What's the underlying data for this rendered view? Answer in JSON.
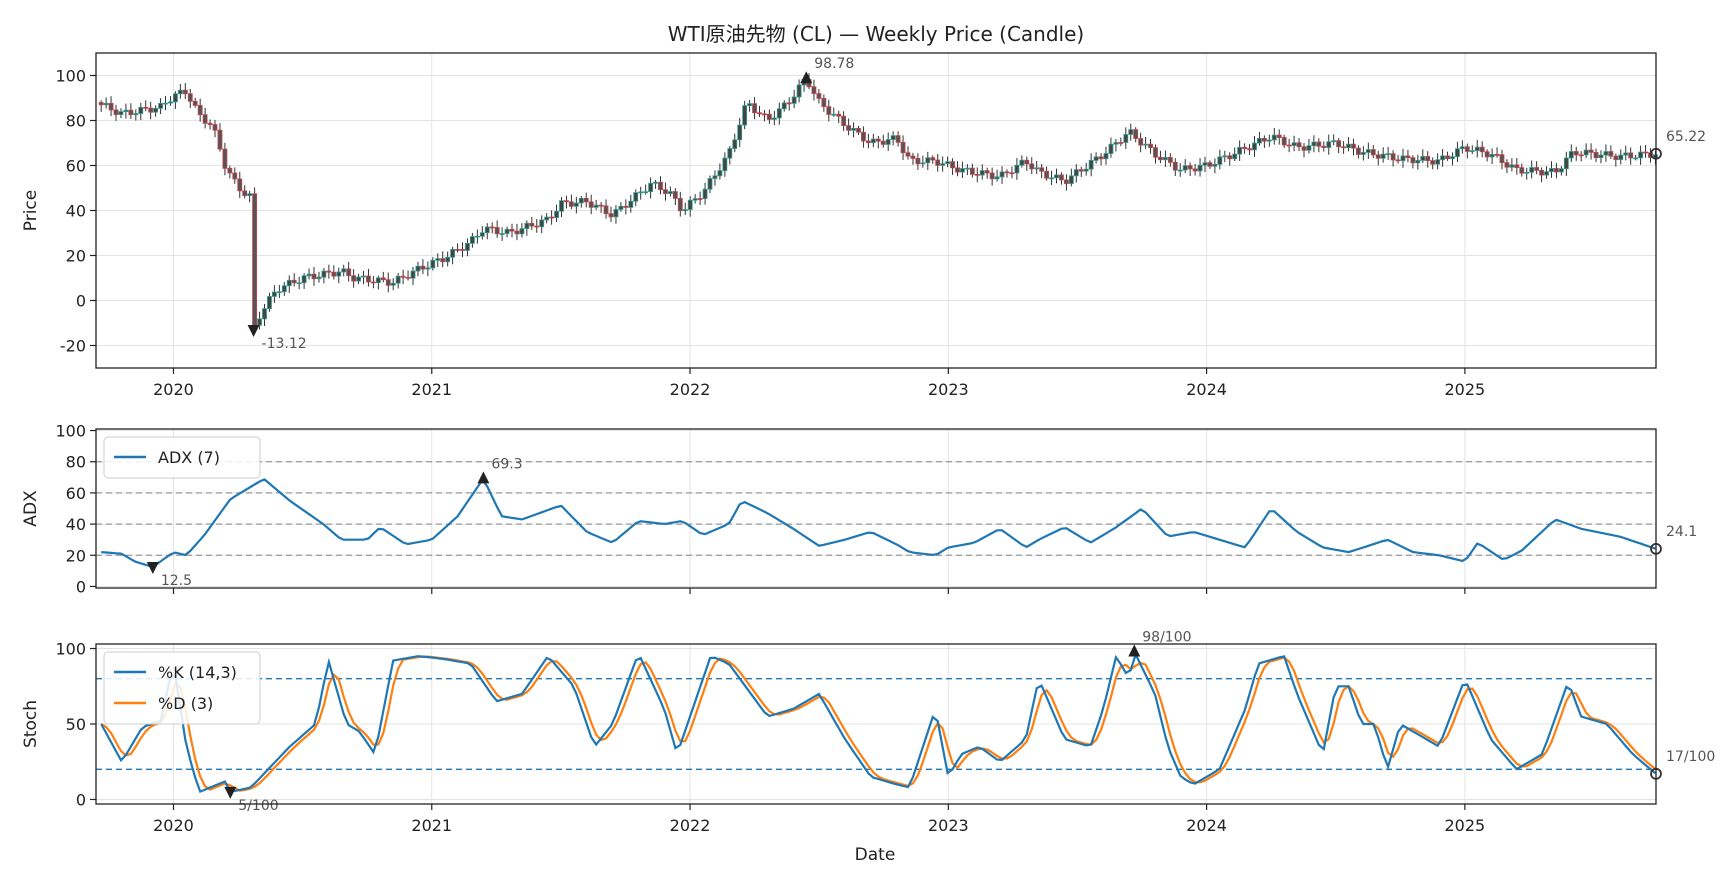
{
  "chart_data": [
    {
      "type": "candlestick",
      "title": "WTI原油先物 (CL) — Weekly Price (Candle)",
      "ylabel": "Price",
      "ylim": [
        -30,
        110
      ],
      "yticks": [
        100,
        80,
        60,
        40,
        20,
        0,
        -20
      ],
      "xlim": [
        2019.7,
        2025.74
      ],
      "xticks": [
        "2020",
        "2021",
        "2022",
        "2023",
        "2024",
        "2025"
      ],
      "colors": {
        "up": "#2e9e8f",
        "down": "#c8414b",
        "wick": "#333333"
      },
      "close_anchors": [
        [
          2019.72,
          87
        ],
        [
          2019.8,
          83
        ],
        [
          2019.95,
          86
        ],
        [
          2020.0,
          91
        ],
        [
          2020.05,
          93
        ],
        [
          2020.1,
          82
        ],
        [
          2020.15,
          78
        ],
        [
          2020.2,
          60
        ],
        [
          2020.25,
          50
        ],
        [
          2020.3,
          46
        ],
        [
          2020.31,
          -13.12
        ],
        [
          2020.34,
          -5
        ],
        [
          2020.4,
          5
        ],
        [
          2020.5,
          10
        ],
        [
          2020.65,
          13
        ],
        [
          2020.7,
          10
        ],
        [
          2020.85,
          8
        ],
        [
          2020.95,
          14
        ],
        [
          2021.05,
          19
        ],
        [
          2021.15,
          26
        ],
        [
          2021.2,
          32
        ],
        [
          2021.3,
          30
        ],
        [
          2021.45,
          36
        ],
        [
          2021.5,
          43
        ],
        [
          2021.6,
          44
        ],
        [
          2021.7,
          38
        ],
        [
          2021.85,
          52
        ],
        [
          2021.92,
          48
        ],
        [
          2021.97,
          40
        ],
        [
          2022.05,
          48
        ],
        [
          2022.15,
          65
        ],
        [
          2022.22,
          88
        ],
        [
          2022.3,
          80
        ],
        [
          2022.38,
          88
        ],
        [
          2022.45,
          98.78
        ],
        [
          2022.5,
          88
        ],
        [
          2022.6,
          78
        ],
        [
          2022.7,
          70
        ],
        [
          2022.8,
          72
        ],
        [
          2022.85,
          62
        ],
        [
          2022.95,
          62
        ],
        [
          2023.05,
          58
        ],
        [
          2023.2,
          55
        ],
        [
          2023.3,
          62
        ],
        [
          2023.35,
          57
        ],
        [
          2023.45,
          53
        ],
        [
          2023.6,
          65
        ],
        [
          2023.7,
          75
        ],
        [
          2023.8,
          65
        ],
        [
          2023.9,
          58
        ],
        [
          2024.0,
          60
        ],
        [
          2024.1,
          65
        ],
        [
          2024.25,
          73
        ],
        [
          2024.35,
          68
        ],
        [
          2024.5,
          70
        ],
        [
          2024.6,
          66
        ],
        [
          2024.75,
          63
        ],
        [
          2024.9,
          62
        ],
        [
          2025.0,
          68
        ],
        [
          2025.1,
          65
        ],
        [
          2025.2,
          58
        ],
        [
          2025.35,
          57
        ],
        [
          2025.42,
          66
        ],
        [
          2025.6,
          64
        ],
        [
          2025.74,
          65.22
        ]
      ],
      "annotations": [
        {
          "label": "98.78",
          "x": 2022.45,
          "y": 98.78,
          "marker": "max"
        },
        {
          "label": "-13.12",
          "x": 2020.31,
          "y": -13.12,
          "marker": "min"
        },
        {
          "label": "65.22",
          "x": 2025.74,
          "y": 65.22,
          "marker": "last"
        }
      ]
    },
    {
      "type": "line",
      "ylabel": "ADX",
      "ylim": [
        -1,
        101
      ],
      "yticks": [
        100,
        80,
        60,
        40,
        20,
        0
      ],
      "hlines": [
        80,
        60,
        40,
        20
      ],
      "series": [
        {
          "name": "ADX (7)",
          "color": "#1f77b4",
          "anchors": [
            [
              2019.72,
              22
            ],
            [
              2019.8,
              21
            ],
            [
              2019.85,
              16
            ],
            [
              2019.92,
              12.5
            ],
            [
              2020.0,
              22
            ],
            [
              2020.05,
              20
            ],
            [
              2020.12,
              33
            ],
            [
              2020.22,
              56
            ],
            [
              2020.3,
              64
            ],
            [
              2020.35,
              69
            ],
            [
              2020.45,
              55
            ],
            [
              2020.58,
              40
            ],
            [
              2020.65,
              30
            ],
            [
              2020.75,
              30
            ],
            [
              2020.8,
              38
            ],
            [
              2020.9,
              27
            ],
            [
              2021.0,
              30
            ],
            [
              2021.1,
              45
            ],
            [
              2021.2,
              69.3
            ],
            [
              2021.27,
              45
            ],
            [
              2021.35,
              43
            ],
            [
              2021.5,
              52
            ],
            [
              2021.6,
              35
            ],
            [
              2021.7,
              28
            ],
            [
              2021.8,
              42
            ],
            [
              2021.9,
              40
            ],
            [
              2021.97,
              42
            ],
            [
              2022.05,
              33
            ],
            [
              2022.15,
              40
            ],
            [
              2022.2,
              55
            ],
            [
              2022.3,
              47
            ],
            [
              2022.4,
              37
            ],
            [
              2022.5,
              26
            ],
            [
              2022.6,
              30
            ],
            [
              2022.7,
              35
            ],
            [
              2022.8,
              27
            ],
            [
              2022.85,
              22
            ],
            [
              2022.95,
              20
            ],
            [
              2023.0,
              25
            ],
            [
              2023.1,
              28
            ],
            [
              2023.2,
              37
            ],
            [
              2023.3,
              25
            ],
            [
              2023.35,
              30
            ],
            [
              2023.45,
              38
            ],
            [
              2023.55,
              28
            ],
            [
              2023.65,
              38
            ],
            [
              2023.75,
              50
            ],
            [
              2023.85,
              32
            ],
            [
              2023.95,
              35
            ],
            [
              2024.05,
              30
            ],
            [
              2024.15,
              25
            ],
            [
              2024.25,
              50
            ],
            [
              2024.35,
              35
            ],
            [
              2024.45,
              25
            ],
            [
              2024.55,
              22
            ],
            [
              2024.7,
              30
            ],
            [
              2024.8,
              22
            ],
            [
              2024.9,
              20
            ],
            [
              2025.0,
              16
            ],
            [
              2025.05,
              28
            ],
            [
              2025.15,
              17
            ],
            [
              2025.22,
              23
            ],
            [
              2025.35,
              43
            ],
            [
              2025.45,
              37
            ],
            [
              2025.6,
              32
            ],
            [
              2025.74,
              24.1
            ]
          ]
        }
      ],
      "annotations": [
        {
          "label": "69.3",
          "x": 2021.2,
          "y": 69.3,
          "marker": "max"
        },
        {
          "label": "12.5",
          "x": 2019.92,
          "y": 12.5,
          "marker": "min"
        },
        {
          "label": "24.1",
          "x": 2025.74,
          "y": 24.1,
          "marker": "last"
        }
      ]
    },
    {
      "type": "line",
      "ylabel": "Stoch",
      "xlabel": "Date",
      "ylim": [
        -3,
        103
      ],
      "yticks": [
        100,
        50,
        0
      ],
      "hlines": [
        80,
        20
      ],
      "series": [
        {
          "name": "%K (14,3)",
          "color": "#1f77b4",
          "anchors": [
            [
              2019.72,
              50
            ],
            [
              2019.8,
              25
            ],
            [
              2019.88,
              48
            ],
            [
              2019.95,
              52
            ],
            [
              2020.0,
              90
            ],
            [
              2020.05,
              35
            ],
            [
              2020.1,
              5
            ],
            [
              2020.2,
              12
            ],
            [
              2020.22,
              5
            ],
            [
              2020.3,
              8
            ],
            [
              2020.45,
              35
            ],
            [
              2020.55,
              50
            ],
            [
              2020.6,
              92
            ],
            [
              2020.67,
              50
            ],
            [
              2020.72,
              45
            ],
            [
              2020.78,
              30
            ],
            [
              2020.85,
              92
            ],
            [
              2020.95,
              95
            ],
            [
              2021.05,
              93
            ],
            [
              2021.15,
              90
            ],
            [
              2021.25,
              65
            ],
            [
              2021.35,
              70
            ],
            [
              2021.45,
              95
            ],
            [
              2021.55,
              75
            ],
            [
              2021.63,
              35
            ],
            [
              2021.7,
              50
            ],
            [
              2021.8,
              97
            ],
            [
              2021.9,
              60
            ],
            [
              2021.95,
              30
            ],
            [
              2022.08,
              95
            ],
            [
              2022.15,
              90
            ],
            [
              2022.3,
              55
            ],
            [
              2022.4,
              60
            ],
            [
              2022.5,
              70
            ],
            [
              2022.6,
              40
            ],
            [
              2022.7,
              15
            ],
            [
              2022.8,
              10
            ],
            [
              2022.85,
              8
            ],
            [
              2022.95,
              60
            ],
            [
              2023.0,
              15
            ],
            [
              2023.05,
              30
            ],
            [
              2023.12,
              35
            ],
            [
              2023.2,
              25
            ],
            [
              2023.3,
              40
            ],
            [
              2023.35,
              80
            ],
            [
              2023.45,
              40
            ],
            [
              2023.55,
              35
            ],
            [
              2023.6,
              60
            ],
            [
              2023.65,
              95
            ],
            [
              2023.7,
              80
            ],
            [
              2023.72,
              98
            ],
            [
              2023.8,
              70
            ],
            [
              2023.85,
              35
            ],
            [
              2023.9,
              15
            ],
            [
              2023.95,
              10
            ],
            [
              2024.05,
              20
            ],
            [
              2024.15,
              60
            ],
            [
              2024.2,
              90
            ],
            [
              2024.3,
              95
            ],
            [
              2024.35,
              70
            ],
            [
              2024.45,
              30
            ],
            [
              2024.5,
              75
            ],
            [
              2024.55,
              75
            ],
            [
              2024.6,
              50
            ],
            [
              2024.65,
              50
            ],
            [
              2024.7,
              20
            ],
            [
              2024.75,
              50
            ],
            [
              2024.8,
              45
            ],
            [
              2024.9,
              35
            ],
            [
              2025.0,
              80
            ],
            [
              2025.1,
              40
            ],
            [
              2025.15,
              30
            ],
            [
              2025.2,
              20
            ],
            [
              2025.3,
              30
            ],
            [
              2025.4,
              78
            ],
            [
              2025.45,
              55
            ],
            [
              2025.55,
              50
            ],
            [
              2025.65,
              30
            ],
            [
              2025.74,
              17
            ]
          ]
        },
        {
          "name": "%D (3)",
          "color": "#ff7f0e",
          "lag_of": "%K (14,3)"
        }
      ],
      "annotations": [
        {
          "label": "98/100",
          "x": 2023.72,
          "y": 98,
          "marker": "max"
        },
        {
          "label": "5/100",
          "x": 2020.22,
          "y": 5,
          "marker": "min"
        },
        {
          "label": "17/100",
          "x": 2025.74,
          "y": 17,
          "marker": "last"
        }
      ]
    }
  ]
}
